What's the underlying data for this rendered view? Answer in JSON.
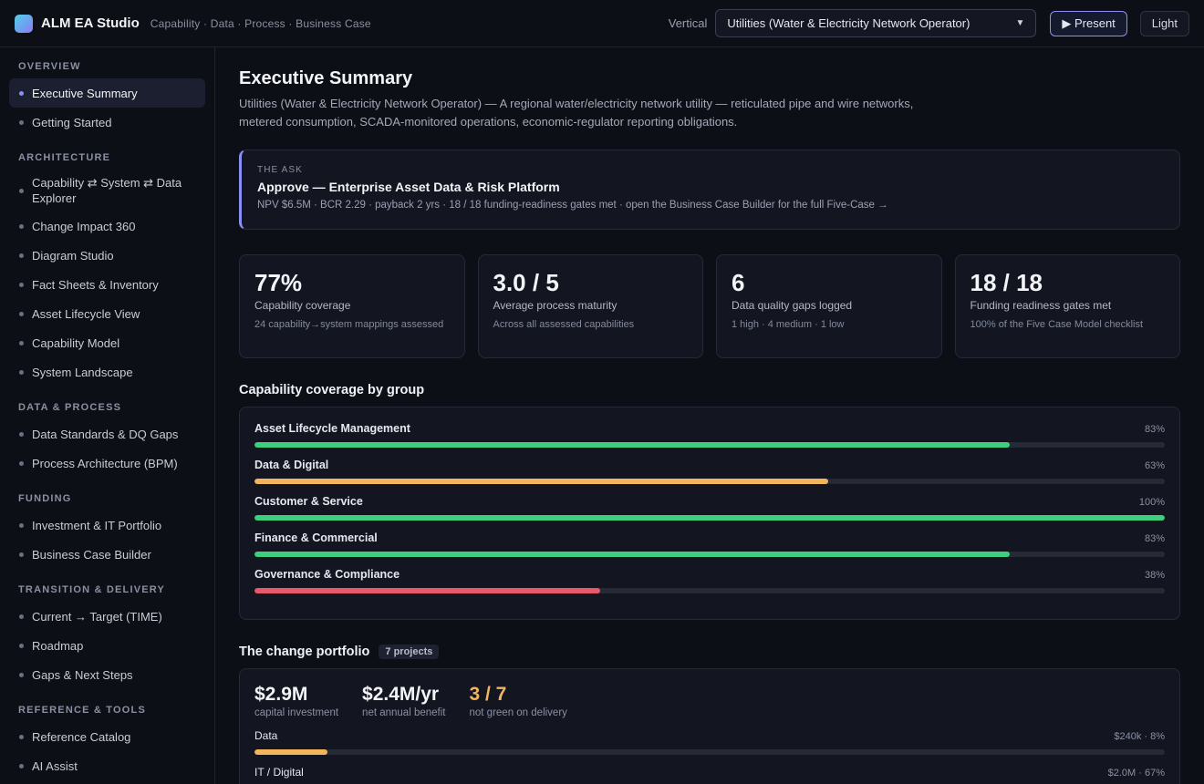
{
  "app": {
    "title": "ALM EA Studio",
    "tagline": "Capability · Data · Process · Business Case",
    "vertical_label": "Vertical",
    "vertical_value": "Utilities (Water & Electricity Network Operator)",
    "present_label": "▶ Present",
    "theme_label": "Light"
  },
  "sidebar": {
    "sections": [
      {
        "title": "OVERVIEW",
        "items": [
          {
            "label": "Executive Summary",
            "active": true
          },
          {
            "label": "Getting Started"
          }
        ]
      },
      {
        "title": "ARCHITECTURE",
        "items": [
          {
            "label": "Capability ⇄ System ⇄ Data Explorer"
          },
          {
            "label": "Change Impact 360"
          },
          {
            "label": "Diagram Studio"
          },
          {
            "label": "Fact Sheets & Inventory"
          },
          {
            "label": "Asset Lifecycle View"
          },
          {
            "label": "Capability Model"
          },
          {
            "label": "System Landscape"
          }
        ]
      },
      {
        "title": "DATA & PROCESS",
        "items": [
          {
            "label": "Data Standards & DQ Gaps"
          },
          {
            "label": "Process Architecture (BPM)"
          }
        ]
      },
      {
        "title": "FUNDING",
        "items": [
          {
            "label": "Investment & IT Portfolio"
          },
          {
            "label": "Business Case Builder"
          }
        ]
      },
      {
        "title": "TRANSITION & DELIVERY",
        "items": [
          {
            "label": "Current → Target (TIME)"
          },
          {
            "label": "Roadmap"
          },
          {
            "label": "Gaps & Next Steps"
          }
        ]
      },
      {
        "title": "REFERENCE & TOOLS",
        "items": [
          {
            "label": "Reference Catalog"
          },
          {
            "label": "AI Assist"
          }
        ]
      }
    ]
  },
  "main": {
    "title": "Executive Summary",
    "subtitle": "Utilities (Water & Electricity Network Operator) — A regional water/electricity network utility — reticulated pipe and wire networks, metered consumption, SCADA-monitored operations, economic-regulator reporting obligations.",
    "ask": {
      "label": "THE ASK",
      "title": "Approve — Enterprise Asset Data & Risk Platform",
      "meta": "NPV $6.5M · BCR 2.29 · payback 2 yrs · 18 / 18 funding-readiness gates met · open the Business Case Builder for the full Five-Case →"
    },
    "kpis": [
      {
        "value": "77%",
        "label": "Capability coverage",
        "note": "24 capability→system mappings assessed"
      },
      {
        "value": "3.0 / 5",
        "label": "Average process maturity",
        "note": "Across all assessed capabilities"
      },
      {
        "value": "6",
        "label": "Data quality gaps logged",
        "note": "1 high · 4 medium · 1 low"
      },
      {
        "value": "18 / 18",
        "label": "Funding readiness gates met",
        "note": "100% of the Five Case Model checklist"
      }
    ],
    "coverage": {
      "title": "Capability coverage by group",
      "groups": [
        {
          "name": "Asset Lifecycle Management",
          "pct_label": "83%",
          "value": 0.83,
          "color": "#3ecf7e"
        },
        {
          "name": "Data & Digital",
          "pct_label": "63%",
          "value": 0.63,
          "color": "#f2b45c"
        },
        {
          "name": "Customer & Service",
          "pct_label": "100%",
          "value": 1.0,
          "color": "#3ecf7e"
        },
        {
          "name": "Finance & Commercial",
          "pct_label": "83%",
          "value": 0.83,
          "color": "#3ecf7e"
        },
        {
          "name": "Governance & Compliance",
          "pct_label": "38%",
          "value": 0.38,
          "color": "#e5596a"
        }
      ]
    },
    "portfolio": {
      "title": "The change portfolio",
      "badge": "7 projects",
      "stats": [
        {
          "value": "$2.9M",
          "label": "capital investment",
          "warn": false
        },
        {
          "value": "$2.4M/yr",
          "label": "net annual benefit",
          "warn": false
        },
        {
          "value": "3 / 7",
          "label": "not green on delivery",
          "warn": true
        }
      ],
      "rows": [
        {
          "name": "Data",
          "value_label": "$240k · 8%",
          "value": 0.08,
          "color": "#f2b45c"
        },
        {
          "name": "IT / Digital",
          "value_label": "$2.0M · 67%",
          "value": 0.67,
          "color": "#8b8ff4"
        }
      ]
    }
  }
}
